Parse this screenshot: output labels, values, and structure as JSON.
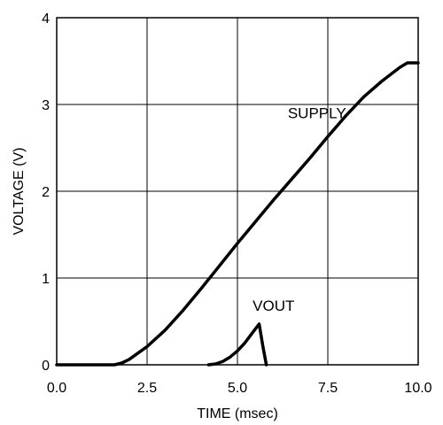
{
  "chart_data": {
    "type": "line",
    "xlabel": "TIME (msec)",
    "ylabel": "VOLTAGE (V)",
    "xlim": [
      0,
      10
    ],
    "ylim": [
      0,
      4
    ],
    "x_ticks": [
      0,
      2.5,
      5,
      7.5,
      10
    ],
    "x_tick_labels": [
      "0.0",
      "2.5",
      "5.0",
      "7.5",
      "10.0"
    ],
    "y_ticks": [
      0,
      1,
      2,
      3,
      4
    ],
    "y_tick_labels": [
      "0",
      "1",
      "2",
      "3",
      "4"
    ],
    "grid": true,
    "line_color": "#000000",
    "series": [
      {
        "name": "SUPPLY",
        "x": [
          0,
          1.6,
          1.8,
          2.0,
          2.5,
          3.0,
          3.5,
          4.0,
          4.5,
          5.0,
          5.5,
          6.0,
          6.5,
          7.0,
          7.5,
          8.0,
          8.5,
          9.0,
          9.5,
          9.7,
          10.0
        ],
        "y": [
          0,
          0,
          0.02,
          0.06,
          0.21,
          0.4,
          0.63,
          0.88,
          1.14,
          1.4,
          1.65,
          1.9,
          2.14,
          2.38,
          2.63,
          2.87,
          3.09,
          3.27,
          3.43,
          3.48,
          3.48
        ]
      },
      {
        "name": "VOUT",
        "x": [
          4.2,
          4.4,
          4.6,
          4.8,
          5.0,
          5.2,
          5.4,
          5.6,
          5.7,
          5.8
        ],
        "y": [
          0,
          0.01,
          0.04,
          0.09,
          0.16,
          0.25,
          0.36,
          0.47,
          0.22,
          0
        ]
      }
    ]
  }
}
